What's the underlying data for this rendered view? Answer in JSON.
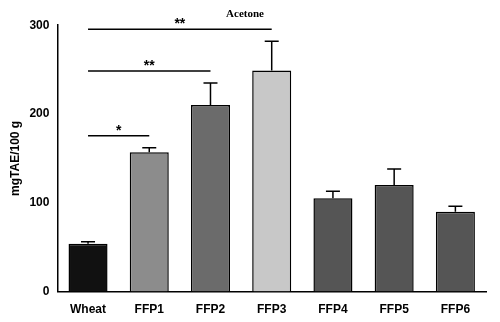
{
  "chart_data": {
    "type": "bar",
    "title": "Acetone",
    "y_label": "mgTAE/100 g",
    "categories": [
      "Wheat",
      "FFP1",
      "FFP2",
      "FFP3",
      "FFP4",
      "FFP5",
      "FFP6"
    ],
    "values": [
      54,
      157,
      210,
      249,
      105,
      120,
      90
    ],
    "errors": [
      2,
      5,
      25,
      33,
      8,
      18,
      6
    ],
    "colors": [
      "#111111",
      "#8c8c8c",
      "#6b6b6b",
      "#c8c8c8",
      "#555555",
      "#555555",
      "#555555"
    ],
    "ylim": [
      0,
      300
    ],
    "yticks": [
      0,
      100,
      200,
      300
    ],
    "grid": false,
    "annotations": [
      {
        "from": "Wheat",
        "to": "FFP1",
        "label": "*"
      },
      {
        "from": "Wheat",
        "to": "FFP2",
        "label": "**"
      },
      {
        "from": "Wheat",
        "to": "FFP3",
        "label": "**"
      }
    ]
  }
}
